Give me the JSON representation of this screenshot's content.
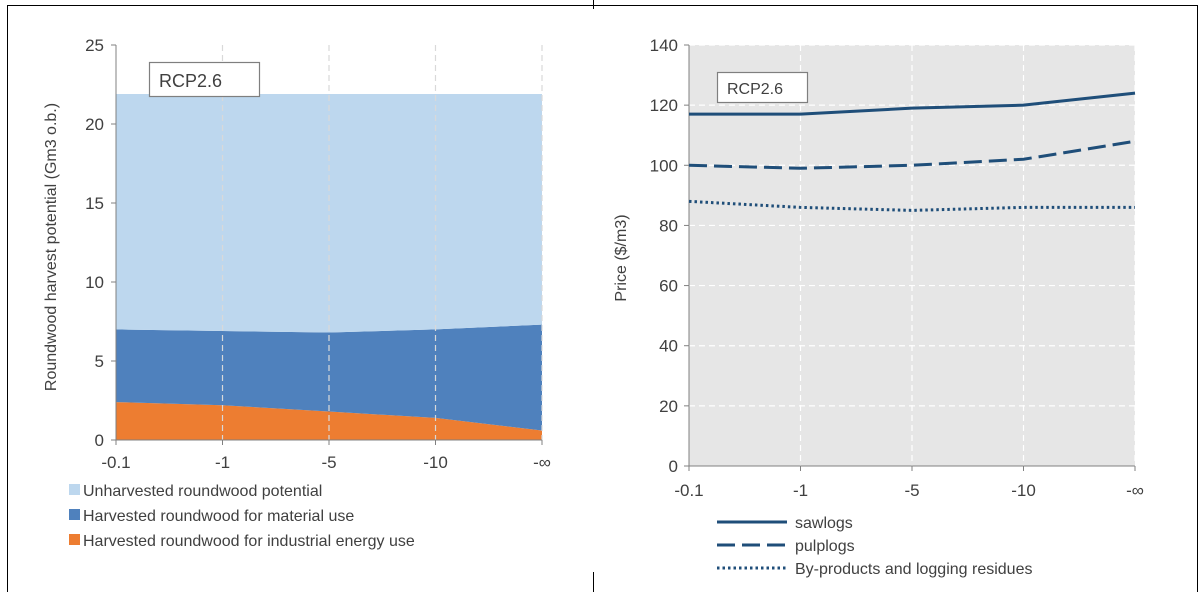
{
  "chart_data": [
    {
      "type": "area",
      "stacked": true,
      "categories": [
        "-0.1",
        "-1",
        "-5",
        "-10",
        "-∞"
      ],
      "ylabel": "Roundwood harvest potential  (Gm3 o.b.)",
      "ylim": [
        0,
        25
      ],
      "yticks": [
        0,
        5,
        10,
        15,
        20,
        25
      ],
      "annotation": "RCP2.6",
      "grid": "vertical dashed",
      "legend_position": "bottom",
      "series": [
        {
          "name": "Harvested roundwood for industrial energy use",
          "color": "#ED7D31",
          "values": [
            2.4,
            2.2,
            1.8,
            1.4,
            0.6
          ]
        },
        {
          "name": "Harvested roundwood for material use",
          "color": "#4F81BD",
          "values": [
            4.6,
            4.7,
            5.0,
            5.6,
            6.7
          ]
        },
        {
          "name": "Unharvested roundwood potential",
          "color": "#BDD7EE",
          "values": [
            14.9,
            15.0,
            15.1,
            14.9,
            14.6
          ]
        }
      ],
      "legend_order": [
        "Unharvested roundwood potential",
        "Harvested roundwood for material use",
        "Harvested roundwood for industrial energy use"
      ]
    },
    {
      "type": "line",
      "categories": [
        "-0.1",
        "-1",
        "-5",
        "-10",
        "-∞"
      ],
      "ylabel": "Price ($/m3)",
      "ylim": [
        0,
        140
      ],
      "yticks": [
        0,
        20,
        40,
        60,
        80,
        100,
        120,
        140
      ],
      "annotation": "RCP2.6",
      "grid": "both dashed",
      "background": "#E6E6E6",
      "legend_position": "bottom",
      "series": [
        {
          "name": "sawlogs",
          "style": "solid",
          "color": "#1F4E79",
          "values": [
            117,
            117,
            119,
            120,
            124
          ]
        },
        {
          "name": "pulplogs",
          "style": "dashed",
          "color": "#1F4E79",
          "values": [
            100,
            99,
            100,
            102,
            108
          ]
        },
        {
          "name": "By-products and logging residues",
          "style": "dotted",
          "color": "#1F4E79",
          "values": [
            88,
            86,
            85,
            86,
            86
          ]
        }
      ]
    }
  ]
}
